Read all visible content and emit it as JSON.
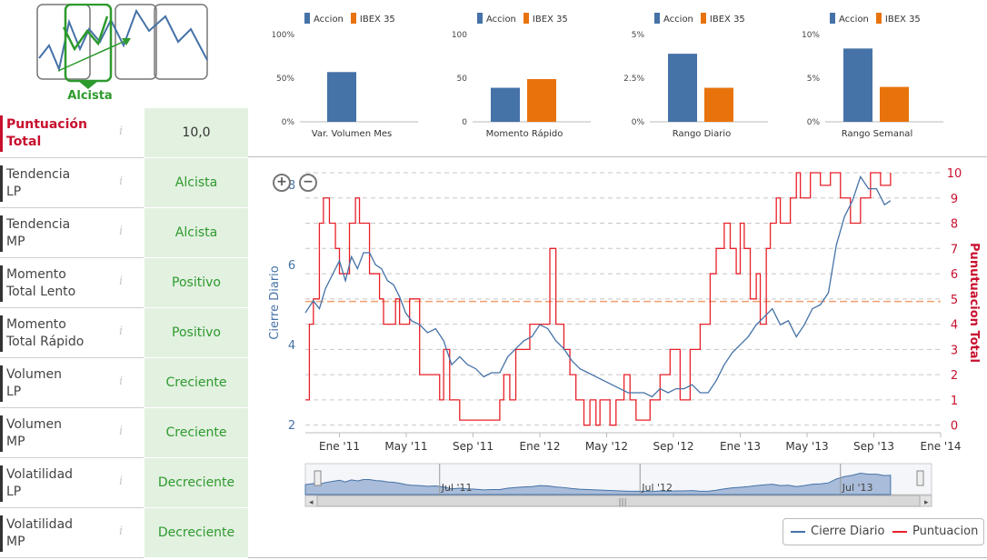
{
  "badge": {
    "label": "Alcista"
  },
  "score": {
    "label_line1": "Puntuación",
    "label_line2": "Total",
    "value": "10,0"
  },
  "rows": [
    {
      "line1": "Tendencia",
      "line2": "LP",
      "value": "Alcista"
    },
    {
      "line1": "Tendencia",
      "line2": "MP",
      "value": "Alcista"
    },
    {
      "line1": "Momento",
      "line2": "Total Lento",
      "value": "Positivo"
    },
    {
      "line1": "Momento",
      "line2": "Total Rápido",
      "value": "Positivo"
    },
    {
      "line1": "Volumen",
      "line2": "LP",
      "value": "Creciente"
    },
    {
      "line1": "Volumen",
      "line2": "MP",
      "value": "Creciente"
    },
    {
      "line1": "Volatilidad",
      "line2": "LP",
      "value": "Decreciente"
    },
    {
      "line1": "Volatilidad",
      "line2": "MP",
      "value": "Decreciente"
    }
  ],
  "info_glyph": "i",
  "colors": {
    "accion": "#4572a7",
    "ibex": "#e8730d",
    "price": "#4572a7",
    "score": "#e8202a",
    "green": "#2d9a2d",
    "red": "#c8102e"
  },
  "chart_data": [
    {
      "type": "bar",
      "legend": [
        "Accion",
        "IBEX 35"
      ],
      "category": "Var. Volumen Mes",
      "yticks": [
        "0%",
        "50%",
        "100%"
      ],
      "ylim": [
        0,
        100
      ],
      "values": [
        57,
        null
      ]
    },
    {
      "type": "bar",
      "legend": [
        "Accion",
        "IBEX 35"
      ],
      "category": "Momento Rápido",
      "yticks": [
        "0",
        "50",
        "100"
      ],
      "ylim": [
        0,
        100
      ],
      "values": [
        39,
        49
      ]
    },
    {
      "type": "bar",
      "legend": [
        "Accion",
        "IBEX 35"
      ],
      "category": "Rango Diario",
      "yticks": [
        "0%",
        "2.5%",
        "5%"
      ],
      "ylim": [
        0,
        5
      ],
      "values": [
        3.9,
        1.95
      ]
    },
    {
      "type": "bar",
      "legend": [
        "Accion",
        "IBEX 35"
      ],
      "category": "Rango Semanal",
      "yticks": [
        "0%",
        "5%",
        "10%"
      ],
      "ylim": [
        0,
        10
      ],
      "values": [
        8.4,
        4.0
      ]
    },
    {
      "type": "line",
      "ylabel_left": "Cierre Diario",
      "ylabel_right": "Punutuacion Total",
      "x_ticks": [
        "Ene '11",
        "May '11",
        "Sep '11",
        "Ene '12",
        "May '12",
        "Sep '12",
        "Ene '13",
        "May '13",
        "Sep '13",
        "Ene '14"
      ],
      "y_left_ticks": [
        2,
        4,
        6,
        8
      ],
      "y_left_lim": [
        1.8,
        8.3
      ],
      "y_right_ticks": [
        0,
        1,
        2,
        3,
        4,
        5,
        6,
        7,
        8,
        9,
        10
      ],
      "y_right_lim": [
        -0.3,
        10
      ],
      "x_range": [
        2010.83,
        2014.0
      ],
      "reference_line_right": 4.9,
      "navigator_labels": [
        "Jul '11",
        "Jul '12",
        "Jul '13"
      ],
      "legend": [
        "Cierre Diario",
        "Puntuacion"
      ],
      "series": [
        {
          "name": "Cierre Diario",
          "axis": "left",
          "x": [
            2010.83,
            2010.87,
            2010.9,
            2010.93,
            2010.97,
            2011.0,
            2011.03,
            2011.06,
            2011.09,
            2011.12,
            2011.15,
            2011.18,
            2011.21,
            2011.24,
            2011.27,
            2011.3,
            2011.33,
            2011.36,
            2011.4,
            2011.44,
            2011.48,
            2011.52,
            2011.56,
            2011.6,
            2011.64,
            2011.68,
            2011.72,
            2011.76,
            2011.8,
            2011.84,
            2011.88,
            2011.92,
            2011.96,
            2012.0,
            2012.04,
            2012.08,
            2012.12,
            2012.16,
            2012.2,
            2012.24,
            2012.28,
            2012.32,
            2012.36,
            2012.4,
            2012.44,
            2012.48,
            2012.52,
            2012.56,
            2012.6,
            2012.64,
            2012.68,
            2012.72,
            2012.76,
            2012.8,
            2012.84,
            2012.88,
            2012.92,
            2012.96,
            2013.0,
            2013.04,
            2013.08,
            2013.12,
            2013.16,
            2013.2,
            2013.24,
            2013.28,
            2013.32,
            2013.36,
            2013.4,
            2013.44,
            2013.48,
            2013.52,
            2013.56,
            2013.6,
            2013.64,
            2013.68,
            2013.72,
            2013.75
          ],
          "y": [
            4.8,
            5.1,
            4.9,
            5.4,
            5.8,
            6.1,
            5.6,
            6.2,
            5.9,
            6.3,
            6.3,
            6.0,
            5.9,
            5.6,
            5.5,
            5.2,
            4.8,
            4.6,
            4.5,
            4.3,
            4.4,
            4.1,
            3.5,
            3.7,
            3.5,
            3.4,
            3.2,
            3.3,
            3.3,
            3.7,
            3.9,
            4.1,
            4.2,
            4.5,
            4.4,
            4.1,
            3.9,
            3.6,
            3.4,
            3.3,
            3.2,
            3.1,
            3.0,
            2.9,
            2.8,
            2.8,
            2.8,
            2.7,
            2.9,
            2.8,
            2.9,
            2.9,
            3.0,
            2.8,
            2.8,
            3.1,
            3.5,
            3.8,
            4.0,
            4.2,
            4.5,
            4.7,
            4.9,
            4.5,
            4.6,
            4.2,
            4.5,
            4.9,
            5.0,
            5.3,
            6.5,
            7.2,
            7.6,
            8.2,
            7.9,
            7.9,
            7.5,
            7.6
          ]
        },
        {
          "name": "Puntuacion",
          "axis": "right",
          "x": [
            2010.83,
            2010.85,
            2010.87,
            2010.9,
            2010.92,
            2010.95,
            2010.98,
            2011.0,
            2011.05,
            2011.08,
            2011.1,
            2011.15,
            2011.2,
            2011.22,
            2011.28,
            2011.3,
            2011.35,
            2011.4,
            2011.45,
            2011.48,
            2011.5,
            2011.52,
            2011.55,
            2011.58,
            2011.6,
            2011.75,
            2011.8,
            2011.82,
            2011.85,
            2011.88,
            2011.92,
            2011.95,
            2012.0,
            2012.05,
            2012.08,
            2012.12,
            2012.15,
            2012.18,
            2012.22,
            2012.25,
            2012.28,
            2012.3,
            2012.35,
            2012.38,
            2012.42,
            2012.45,
            2012.48,
            2012.5,
            2012.55,
            2012.6,
            2012.65,
            2012.7,
            2012.75,
            2012.8,
            2012.85,
            2012.88,
            2012.92,
            2012.95,
            2012.98,
            2013.0,
            2013.02,
            2013.05,
            2013.08,
            2013.1,
            2013.13,
            2013.15,
            2013.18,
            2013.2,
            2013.25,
            2013.28,
            2013.3,
            2013.35,
            2013.4,
            2013.45,
            2013.5,
            2013.55,
            2013.6,
            2013.65,
            2013.7,
            2013.75
          ],
          "y": [
            1,
            4,
            5,
            8,
            9,
            8,
            7,
            6,
            8,
            9,
            8,
            6,
            5,
            4,
            5,
            4,
            5,
            2,
            2,
            2,
            1,
            3,
            1,
            1,
            0.2,
            0.2,
            1,
            2,
            1,
            3,
            3,
            4,
            4,
            7,
            4,
            3,
            2,
            1,
            0,
            1,
            0,
            1,
            0,
            1,
            2,
            1,
            0.2,
            0.2,
            1,
            2,
            3,
            1,
            3,
            4,
            6,
            7,
            8,
            7,
            6,
            8,
            7,
            5,
            6,
            4,
            7,
            8,
            9,
            8,
            9,
            10,
            9,
            10,
            9.5,
            10,
            9,
            8,
            9,
            10,
            9.5,
            10
          ]
        }
      ]
    }
  ]
}
